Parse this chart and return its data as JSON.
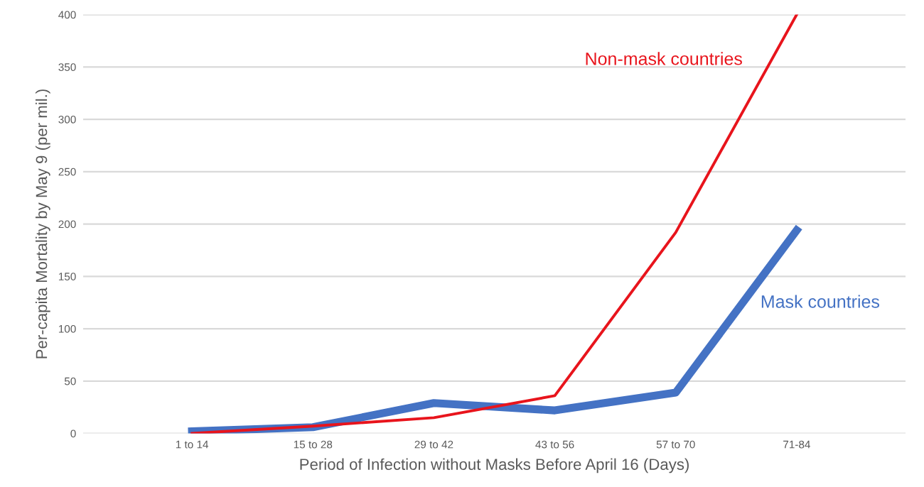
{
  "chart_data": {
    "type": "line",
    "xlabel": "Period of Infection without Masks Before April 16 (Days)",
    "ylabel": "Per-capita Mortality by May 9 (per mil.)",
    "categories": [
      "1 to 14",
      "15 to 28",
      "29 to 42",
      "43 to 56",
      "57 to 70",
      "71-84"
    ],
    "series": [
      {
        "name": "Non-mask countries",
        "color": "#e8141c",
        "values": [
          0,
          7,
          15,
          36,
          192,
          400
        ]
      },
      {
        "name": "Mask countries",
        "color": "#4472c4",
        "values": [
          2,
          6,
          29,
          22,
          39,
          194
        ]
      }
    ],
    "ylim": [
      0,
      400
    ],
    "yticks": [
      0,
      50,
      100,
      150,
      200,
      250,
      300,
      350,
      400
    ],
    "grid": "y",
    "legend": false,
    "marker": "none",
    "line_style": "solid"
  }
}
